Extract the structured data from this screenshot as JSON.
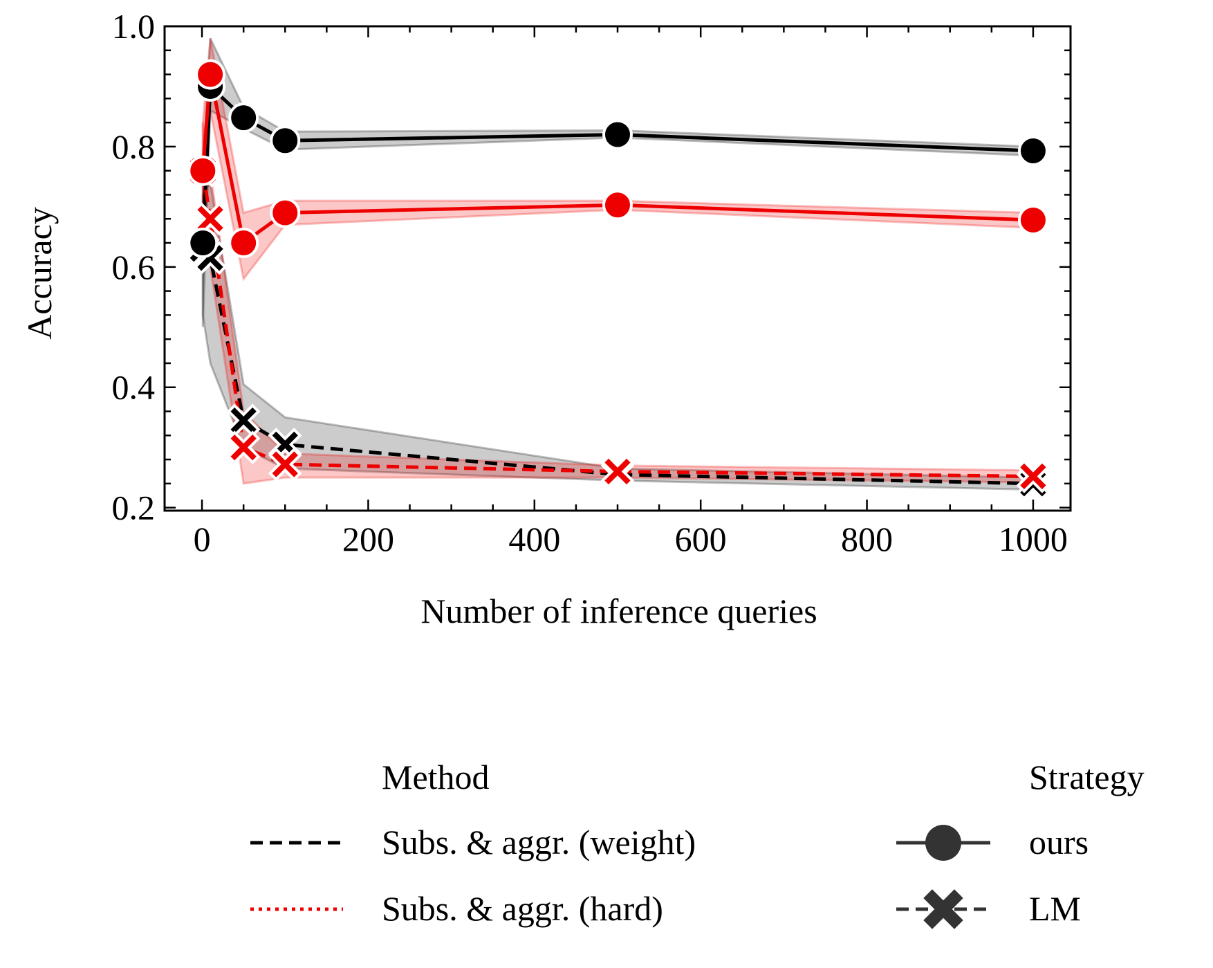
{
  "chart_data": {
    "type": "line",
    "xlabel": "Number of inference queries",
    "ylabel": "Accuracy",
    "xlim": [
      -45,
      1045
    ],
    "ylim": [
      0.195,
      1.0
    ],
    "x_ticks": [
      0,
      200,
      400,
      600,
      800,
      1000
    ],
    "y_ticks": [
      0.2,
      0.4,
      0.6,
      0.8,
      1.0
    ],
    "x_tick_labels": [
      "0",
      "200",
      "400",
      "600",
      "800",
      "1000"
    ],
    "y_tick_labels": [
      "0.2",
      "0.4",
      "0.6",
      "0.8",
      "1.0"
    ],
    "grid": false,
    "series": [
      {
        "method": "Subs. & aggr. (weight)",
        "strategy": "ours",
        "color": "#000000",
        "marker": "circle",
        "line": "solid",
        "x": [
          1,
          10,
          50,
          100,
          500,
          1000
        ],
        "y": [
          0.64,
          0.9,
          0.848,
          0.81,
          0.82,
          0.793
        ],
        "lower": [
          0.5,
          0.86,
          0.83,
          0.795,
          0.815,
          0.785
        ],
        "upper": [
          0.76,
          0.98,
          0.865,
          0.825,
          0.827,
          0.8
        ]
      },
      {
        "method": "Subs. & aggr. (hard)",
        "strategy": "ours",
        "color": "#ee0000",
        "marker": "circle",
        "line": "solid",
        "x": [
          1,
          10,
          50,
          100,
          500,
          1000
        ],
        "y": [
          0.76,
          0.92,
          0.64,
          0.69,
          0.703,
          0.678
        ],
        "lower": [
          0.7,
          0.86,
          0.58,
          0.67,
          0.695,
          0.665
        ],
        "upper": [
          0.84,
          0.98,
          0.69,
          0.71,
          0.71,
          0.69
        ]
      },
      {
        "method": "Subs. & aggr. (weight)",
        "strategy": "LM",
        "color": "#000000",
        "marker": "x",
        "line": "dashed",
        "x": [
          1,
          10,
          50,
          100,
          500,
          1000
        ],
        "y": [
          0.63,
          0.615,
          0.345,
          0.305,
          0.255,
          0.24
        ],
        "lower": [
          0.52,
          0.44,
          0.3,
          0.265,
          0.245,
          0.23
        ],
        "upper": [
          0.72,
          0.74,
          0.405,
          0.35,
          0.265,
          0.25
        ]
      },
      {
        "method": "Subs. & aggr. (hard)",
        "strategy": "LM",
        "color": "#ee0000",
        "marker": "x",
        "line": "dashed",
        "x": [
          1,
          10,
          50,
          100,
          500,
          1000
        ],
        "y": [
          0.76,
          0.68,
          0.3,
          0.272,
          0.26,
          0.252
        ],
        "lower": [
          0.69,
          0.6,
          0.24,
          0.25,
          0.25,
          0.242
        ],
        "upper": [
          0.84,
          0.76,
          0.36,
          0.29,
          0.27,
          0.262
        ]
      }
    ],
    "legend": {
      "position": "below",
      "method_title": "Method",
      "method_entries": [
        {
          "label": "Subs. & aggr. (weight)",
          "color": "#000000",
          "line": "dashed"
        },
        {
          "label": "Subs. & aggr. (hard)",
          "color": "#ee0000",
          "line": "dotted"
        }
      ],
      "strategy_title": "Strategy",
      "strategy_entries": [
        {
          "label": "ours",
          "marker": "circle",
          "color": "#333333"
        },
        {
          "label": "LM",
          "marker": "x",
          "color": "#333333"
        }
      ]
    }
  }
}
